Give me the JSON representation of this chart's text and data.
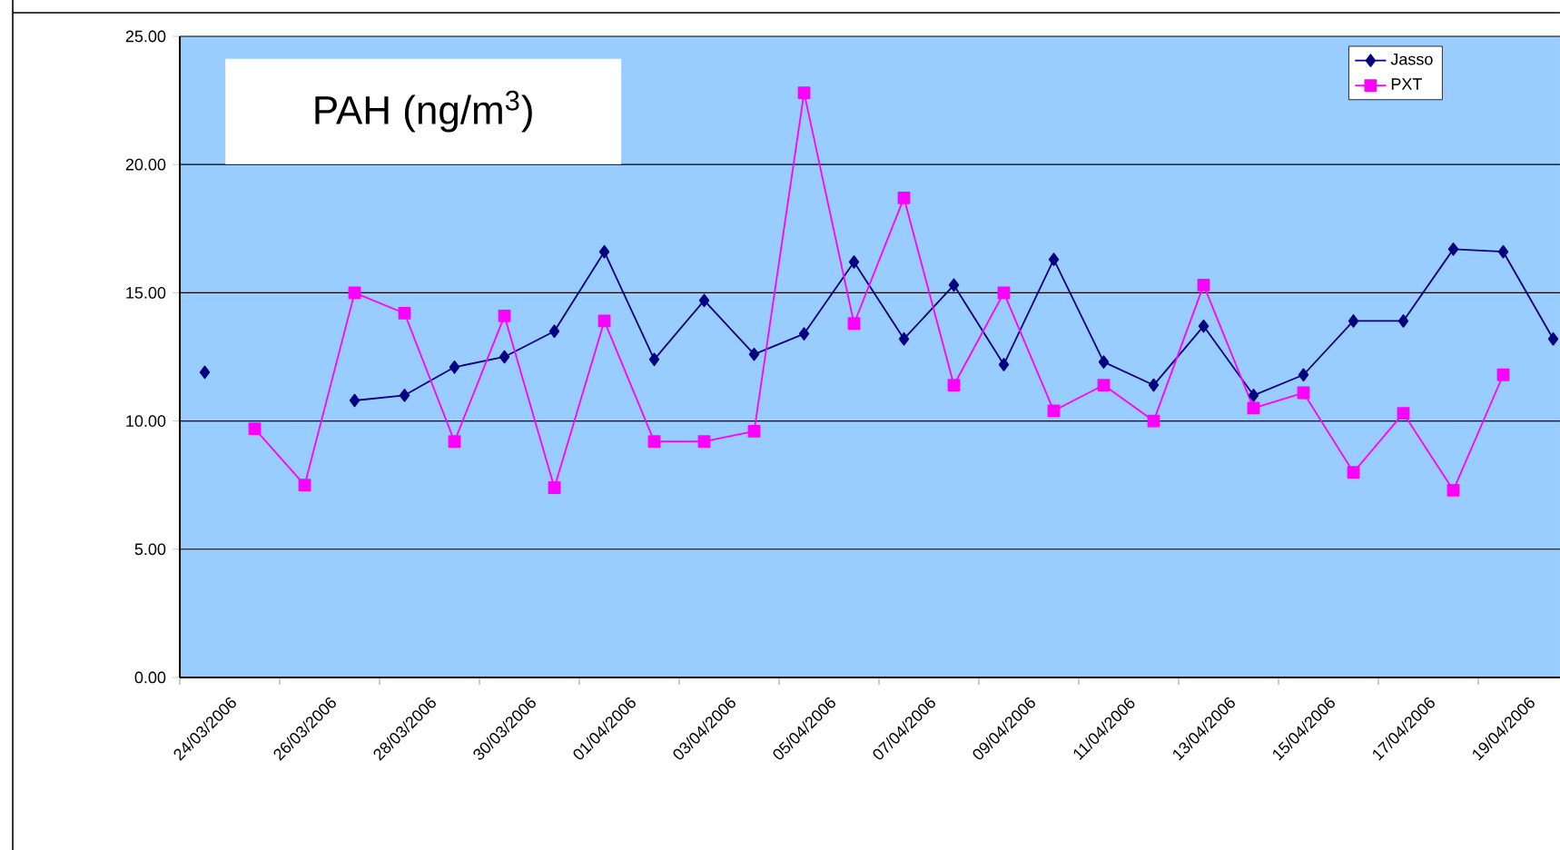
{
  "chart_data": {
    "type": "line",
    "title": "PAH (ng/m$^{3}$)",
    "categories": [
      "24/03/2006",
      null,
      "26/03/2006",
      null,
      "28/03/2006",
      null,
      "30/03/2006",
      null,
      "01/04/2006",
      null,
      "03/04/2006",
      null,
      "05/04/2006",
      null,
      "07/04/2006",
      null,
      "09/04/2006",
      null,
      "11/04/2006",
      null,
      "13/04/2006",
      null,
      "15/04/2006",
      null,
      "17/04/2006",
      null,
      "19/04/2006",
      null
    ],
    "series": [
      {
        "name": "Jasso",
        "color": "#000080",
        "marker": "diamond",
        "values": [
          11.9,
          null,
          null,
          10.8,
          11.0,
          12.1,
          12.5,
          13.5,
          16.6,
          12.4,
          14.7,
          12.6,
          13.4,
          16.2,
          13.2,
          15.3,
          12.2,
          16.3,
          12.3,
          11.4,
          13.7,
          11.0,
          11.8,
          13.9,
          13.9,
          16.7,
          16.6,
          13.2
        ]
      },
      {
        "name": "PXT",
        "color": "#ff00ff",
        "marker": "square",
        "values": [
          null,
          9.7,
          7.5,
          15.0,
          14.2,
          9.2,
          14.1,
          7.4,
          13.9,
          9.2,
          9.2,
          9.6,
          22.8,
          13.8,
          18.7,
          11.4,
          15.0,
          10.4,
          11.4,
          10.0,
          15.3,
          10.5,
          11.1,
          8.0,
          10.3,
          7.3,
          11.8,
          null
        ]
      }
    ],
    "ylim": [
      0,
      25
    ],
    "yticks": [
      {
        "value": 0,
        "label": "0.00"
      },
      {
        "value": 5,
        "label": "5.00"
      },
      {
        "value": 10,
        "label": "10.00"
      },
      {
        "value": 15,
        "label": "15.00"
      },
      {
        "value": 20,
        "label": "20.00"
      },
      {
        "value": 25,
        "label": "25.00"
      }
    ],
    "grid": "y",
    "legend": "top right",
    "line_style": "solid"
  }
}
